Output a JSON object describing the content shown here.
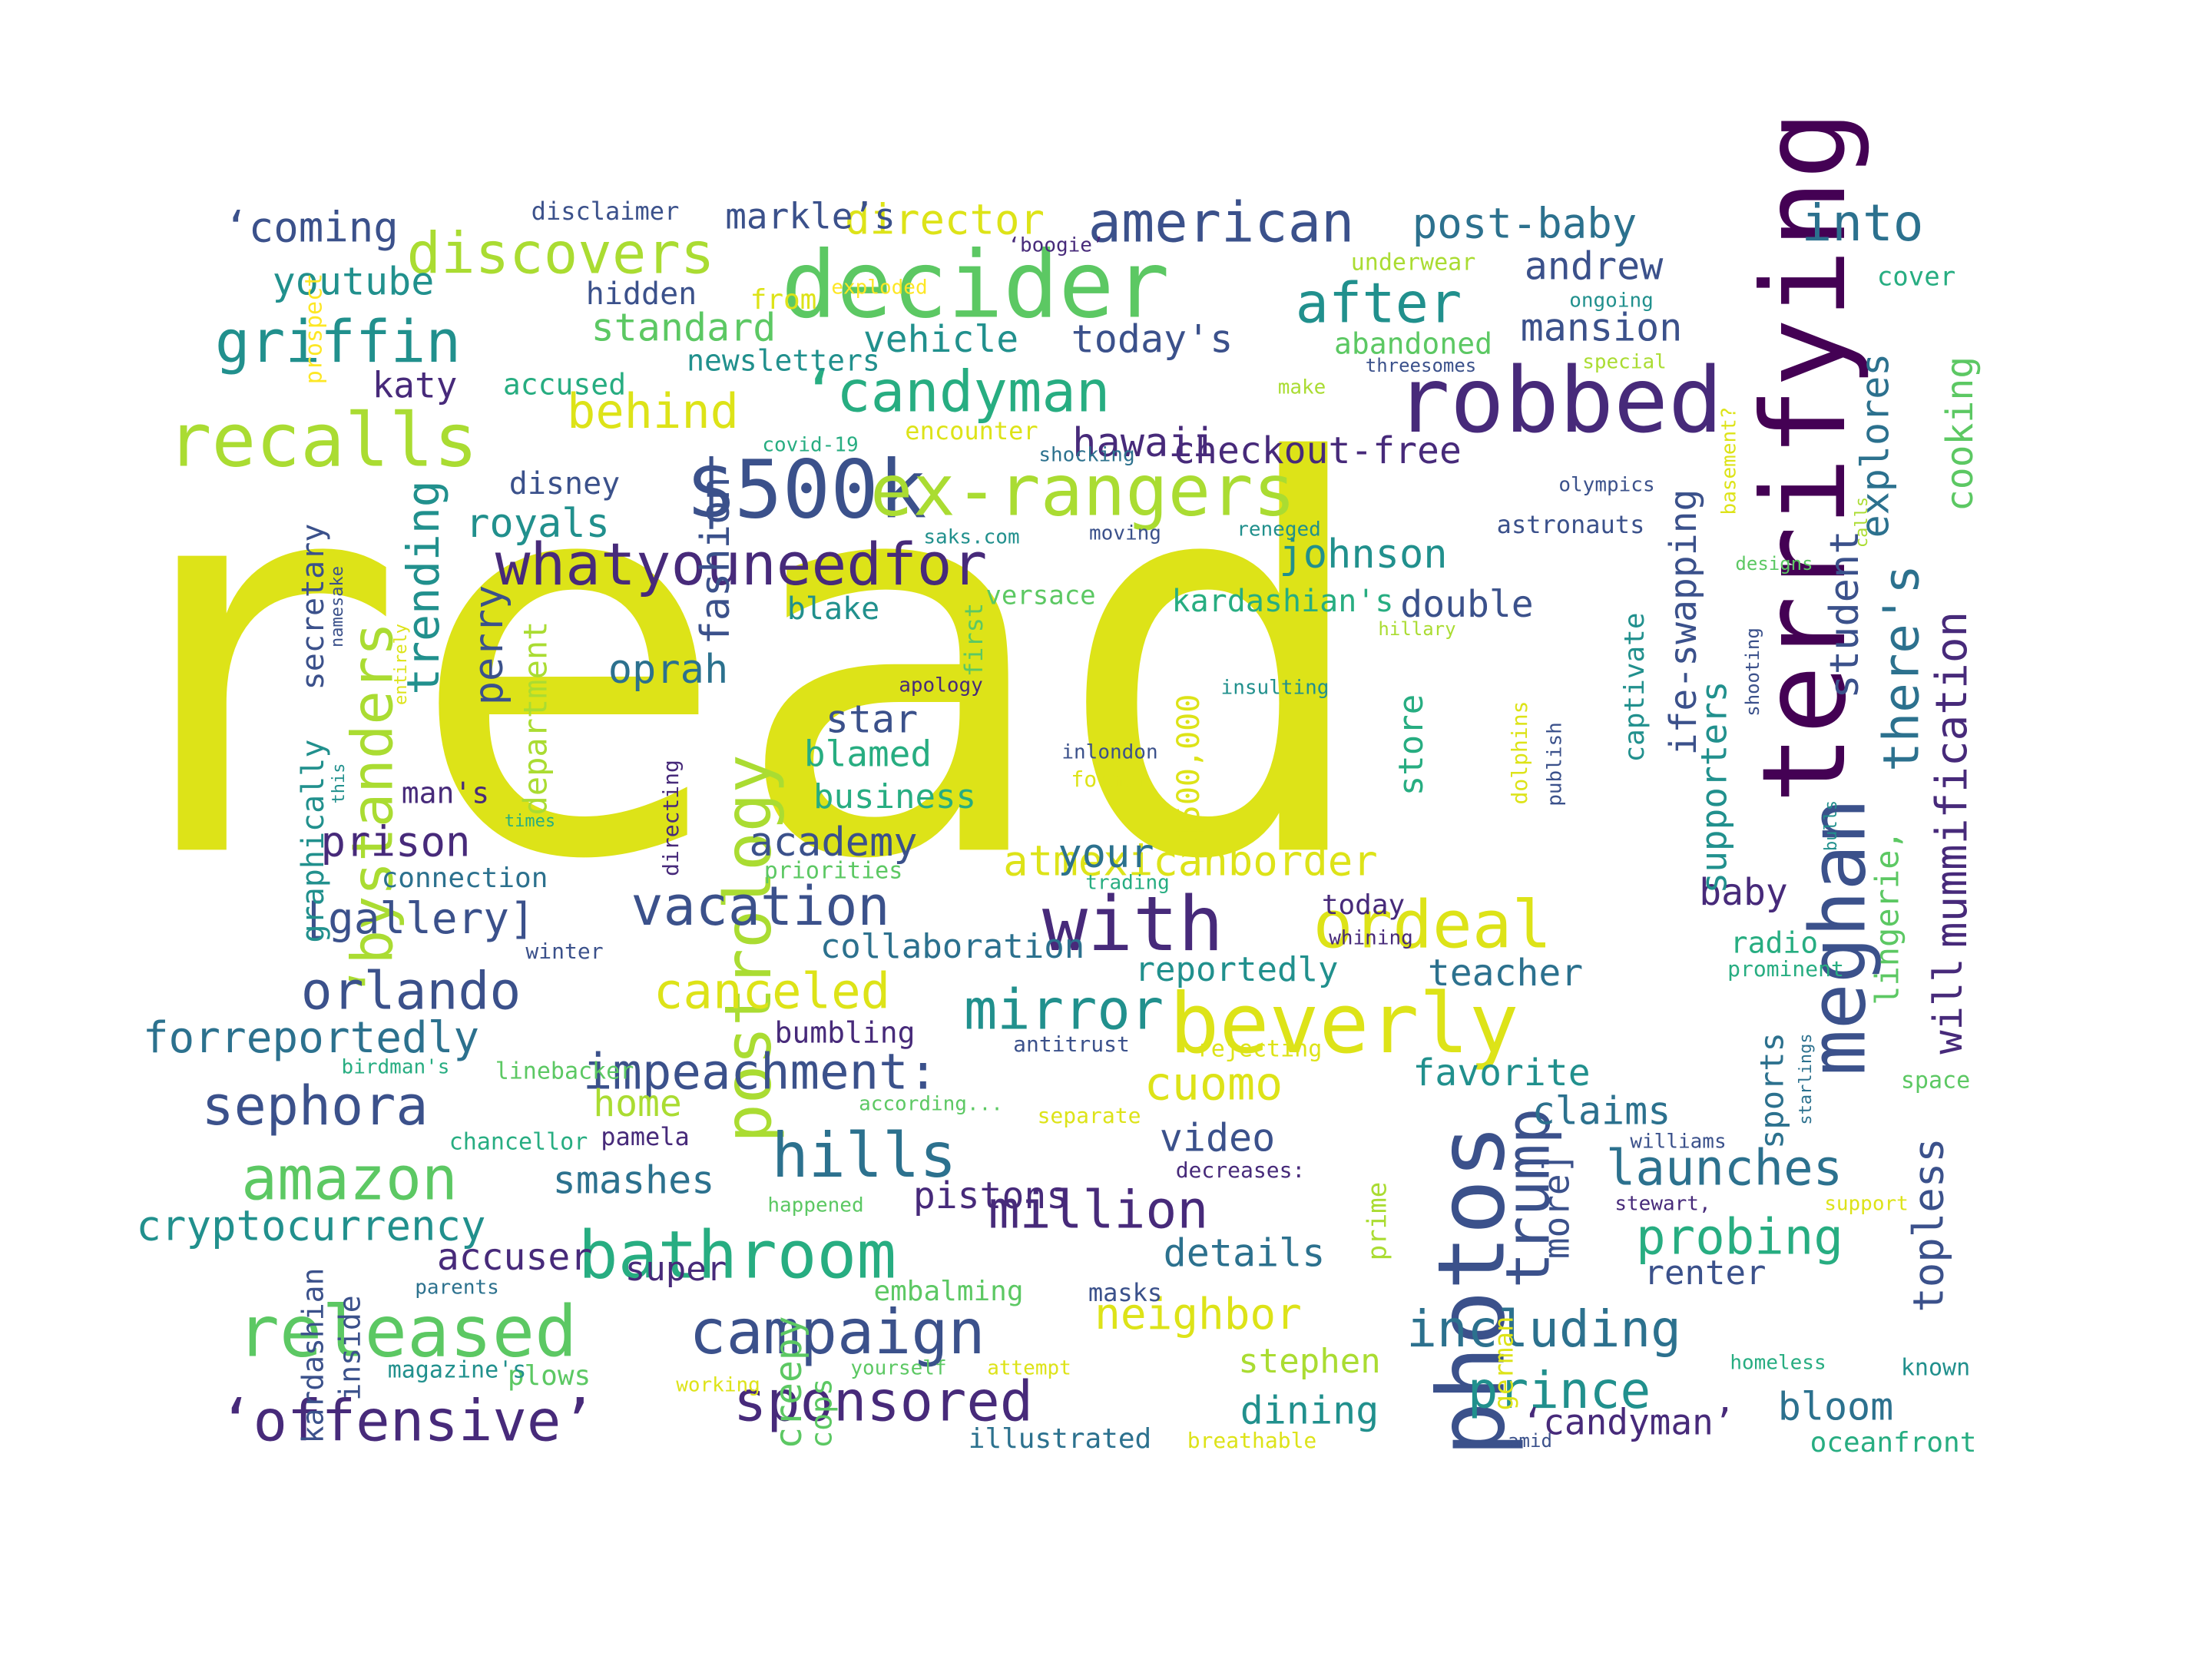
{
  "palette": {
    "p0": "#440154",
    "p1": "#472a7a",
    "p2": "#3b518b",
    "p3": "#2c718e",
    "p4": "#21908d",
    "p5": "#27ad81",
    "p6": "#5cc863",
    "p7": "#aadc32",
    "p8": "#dde318",
    "p9": "#fde725"
  },
  "words": [
    {
      "text": "(read",
      "color": "p8"
    },
    {
      "text": "terrifying",
      "color": "p0"
    },
    {
      "text": "robbed",
      "color": "p1"
    },
    {
      "text": "decider",
      "color": "p6"
    },
    {
      "text": "photos",
      "color": "p2"
    },
    {
      "text": "beverly",
      "color": "p8"
    },
    {
      "text": "$500k",
      "color": "p2"
    },
    {
      "text": "ex-rangers",
      "color": "p7"
    },
    {
      "text": "with",
      "color": "p1"
    },
    {
      "text": "ordeal",
      "color": "p8"
    },
    {
      "text": "recalls",
      "color": "p7"
    },
    {
      "text": "meghan",
      "color": "p2"
    },
    {
      "text": "released",
      "color": "p6"
    },
    {
      "text": "‘candyman",
      "color": "p5"
    },
    {
      "text": "postrology",
      "color": "p7"
    },
    {
      "text": "‘offensive’",
      "color": "p1"
    },
    {
      "text": "whatyouneedfor",
      "color": "p1"
    },
    {
      "text": "campaign",
      "color": "p2"
    },
    {
      "text": "bathroom",
      "color": "p5"
    },
    {
      "text": "griffin",
      "color": "p4"
    },
    {
      "text": "american",
      "color": "p2"
    },
    {
      "text": "discovers",
      "color": "p7"
    },
    {
      "text": "hills",
      "color": "p3"
    },
    {
      "text": "‘bystanders",
      "color": "p7"
    },
    {
      "text": "trump",
      "color": "p2"
    },
    {
      "text": "amazon",
      "color": "p6"
    },
    {
      "text": "sponsored",
      "color": "p1"
    },
    {
      "text": "after",
      "color": "p4"
    },
    {
      "text": "mirror",
      "color": "p4"
    },
    {
      "text": "vacation",
      "color": "p2"
    },
    {
      "text": "sephora",
      "color": "p2"
    },
    {
      "text": "orlando",
      "color": "p2"
    },
    {
      "text": "impeachment:",
      "color": "p2"
    },
    {
      "text": "million",
      "color": "p1"
    },
    {
      "text": "into",
      "color": "p3"
    },
    {
      "text": "canceled",
      "color": "p8"
    },
    {
      "text": "including",
      "color": "p3"
    },
    {
      "text": "cryptocurrency",
      "color": "p4"
    },
    {
      "text": "behind",
      "color": "p8"
    },
    {
      "text": "there's",
      "color": "p3"
    },
    {
      "text": "prince",
      "color": "p4"
    },
    {
      "text": "probing",
      "color": "p5"
    },
    {
      "text": "forreportedly",
      "color": "p3"
    },
    {
      "text": "launches",
      "color": "p3"
    },
    {
      "text": "mummification",
      "color": "p1"
    },
    {
      "text": "trending",
      "color": "p4"
    },
    {
      "text": "cuomo",
      "color": "p8"
    },
    {
      "text": "neighbor",
      "color": "p8"
    },
    {
      "text": "atmexicanborder",
      "color": "p8"
    },
    {
      "text": "‘coming",
      "color": "p2"
    },
    {
      "text": "post-baby",
      "color": "p3"
    },
    {
      "text": "checkout-free",
      "color": "p1"
    },
    {
      "text": "director",
      "color": "p8"
    },
    {
      "text": "topless",
      "color": "p2"
    },
    {
      "text": "smashes",
      "color": "p3"
    },
    {
      "text": "hawaii",
      "color": "p1"
    },
    {
      "text": "today's",
      "color": "p2"
    },
    {
      "text": "vehicle",
      "color": "p4"
    },
    {
      "text": "standard",
      "color": "p6"
    },
    {
      "text": "johnson",
      "color": "p4"
    },
    {
      "text": "fashion",
      "color": "p2"
    },
    {
      "text": "academy",
      "color": "p2"
    },
    {
      "text": "[gallery]",
      "color": "p2"
    },
    {
      "text": "prison",
      "color": "p1"
    },
    {
      "text": "perry",
      "color": "p2"
    },
    {
      "text": "royals",
      "color": "p4"
    },
    {
      "text": "oprah",
      "color": "p3"
    },
    {
      "text": "andrew",
      "color": "p2"
    },
    {
      "text": "mansion",
      "color": "p2"
    },
    {
      "text": "youtube",
      "color": "p4"
    },
    {
      "text": "explores",
      "color": "p3"
    },
    {
      "text": "cooking",
      "color": "p6"
    },
    {
      "text": "student",
      "color": "p2"
    },
    {
      "text": "markle’s",
      "color": "p2"
    },
    {
      "text": "ife-swapping",
      "color": "p2"
    },
    {
      "text": "video",
      "color": "p2"
    },
    {
      "text": "details",
      "color": "p3"
    },
    {
      "text": "pistons",
      "color": "p1"
    },
    {
      "text": "dining",
      "color": "p4"
    },
    {
      "text": "bloom",
      "color": "p3"
    },
    {
      "text": "claims",
      "color": "p3"
    },
    {
      "text": "accuser",
      "color": "p1"
    },
    {
      "text": "favorite",
      "color": "p4"
    },
    {
      "text": "teacher",
      "color": "p3"
    },
    {
      "text": "baby",
      "color": "p1"
    },
    {
      "text": "star",
      "color": "p2"
    },
    {
      "text": "your",
      "color": "p3"
    },
    {
      "text": "will",
      "color": "p1"
    },
    {
      "text": "double",
      "color": "p2"
    },
    {
      "text": "collaboration",
      "color": "p3"
    },
    {
      "text": "reportedly",
      "color": "p4"
    },
    {
      "text": "blamed",
      "color": "p5"
    },
    {
      "text": "katy",
      "color": "p1"
    },
    {
      "text": "home",
      "color": "p7"
    },
    {
      "text": "more]",
      "color": "p2"
    },
    {
      "text": "renter",
      "color": "p2"
    },
    {
      "text": "creepy",
      "color": "p6"
    },
    {
      "text": "business",
      "color": "p5"
    },
    {
      "text": "supporters",
      "color": "p4"
    },
    {
      "text": "store",
      "color": "p5"
    },
    {
      "text": "department",
      "color": "p7"
    },
    {
      "text": "kardashian's",
      "color": "p5"
    },
    {
      "text": "lingerie,",
      "color": "p6"
    },
    {
      "text": "sports",
      "color": "p3"
    },
    {
      "text": "stephen",
      "color": "p7"
    },
    {
      "text": "‘candyman’",
      "color": "p1"
    },
    {
      "text": "super",
      "color": "p1"
    },
    {
      "text": "man's",
      "color": "p1"
    },
    {
      "text": "blake",
      "color": "p4"
    },
    {
      "text": "hidden",
      "color": "p2"
    },
    {
      "text": "newsletters",
      "color": "p4"
    },
    {
      "text": "disney",
      "color": "p2"
    },
    {
      "text": "accused",
      "color": "p5"
    },
    {
      "text": "secretary",
      "color": "p2"
    },
    {
      "text": "graphically",
      "color": "p4"
    },
    {
      "text": "kardashian",
      "color": "p2"
    },
    {
      "text": "inside",
      "color": "p2"
    },
    {
      "text": "cops",
      "color": "p6"
    },
    {
      "text": "$500,000",
      "color": "p8"
    },
    {
      "text": "abandoned",
      "color": "p6"
    },
    {
      "text": "captivate",
      "color": "p4"
    },
    {
      "text": "connection",
      "color": "p3"
    },
    {
      "text": "bumbling",
      "color": "p1"
    },
    {
      "text": "plows",
      "color": "p6"
    },
    {
      "text": "embalming",
      "color": "p6"
    },
    {
      "text": "illustrated",
      "color": "p3"
    },
    {
      "text": "oceanfront",
      "color": "p5"
    },
    {
      "text": "radio",
      "color": "p5"
    },
    {
      "text": "masks",
      "color": "p2"
    },
    {
      "text": "pamela",
      "color": "p1"
    },
    {
      "text": "german",
      "color": "p8"
    },
    {
      "text": "prime",
      "color": "p7"
    },
    {
      "text": "today",
      "color": "p1"
    },
    {
      "text": "astronauts",
      "color": "p2"
    },
    {
      "text": "from",
      "color": "p8"
    },
    {
      "text": "encounter",
      "color": "p8"
    },
    {
      "text": "underwear",
      "color": "p7"
    },
    {
      "text": "versace",
      "color": "p6"
    },
    {
      "text": "first",
      "color": "p6"
    },
    {
      "text": "prospect",
      "color": "p9"
    },
    {
      "text": "covid-19",
      "color": "p5"
    },
    {
      "text": "saks.com",
      "color": "p4"
    },
    {
      "text": "olympics",
      "color": "p2"
    },
    {
      "text": "cover",
      "color": "p5"
    },
    {
      "text": "directing",
      "color": "p1"
    },
    {
      "text": "disclaimer",
      "color": "p2"
    },
    {
      "text": "apology",
      "color": "p1"
    },
    {
      "text": "former",
      "color": "p8"
    },
    {
      "text": "priorities",
      "color": "p6"
    },
    {
      "text": "trading",
      "color": "p5"
    },
    {
      "text": "whining",
      "color": "p1"
    },
    {
      "text": "rejecting",
      "color": "p8"
    },
    {
      "text": "linebacker",
      "color": "p6"
    },
    {
      "text": "winter",
      "color": "p2"
    },
    {
      "text": "chancellor",
      "color": "p5"
    },
    {
      "text": "separate",
      "color": "p8"
    },
    {
      "text": "decreases:",
      "color": "p1"
    },
    {
      "text": "antitrust",
      "color": "p2"
    },
    {
      "text": "homeless",
      "color": "p5"
    },
    {
      "text": "known",
      "color": "p4"
    },
    {
      "text": "space",
      "color": "p6"
    },
    {
      "text": "inlondon",
      "color": "p2"
    },
    {
      "text": "insulting",
      "color": "p4"
    },
    {
      "text": "publish",
      "color": "p2"
    },
    {
      "text": "dolphins",
      "color": "p8"
    },
    {
      "text": "birdman's",
      "color": "p5"
    },
    {
      "text": "prominent",
      "color": "p5"
    },
    {
      "text": "magazine's",
      "color": "p4"
    },
    {
      "text": "parents",
      "color": "p3"
    },
    {
      "text": "stewart,",
      "color": "p1"
    },
    {
      "text": "breathable",
      "color": "p8"
    },
    {
      "text": "support",
      "color": "p8"
    },
    {
      "text": "amid",
      "color": "p2"
    },
    {
      "text": "happened",
      "color": "p6"
    },
    {
      "text": "williams",
      "color": "p2"
    },
    {
      "text": "yourself",
      "color": "p6"
    },
    {
      "text": "attempt",
      "color": "p8"
    },
    {
      "text": "working",
      "color": "p8"
    },
    {
      "text": "according...",
      "color": "p6"
    },
    {
      "text": "shocking",
      "color": "p3"
    },
    {
      "text": "moving",
      "color": "p2"
    },
    {
      "text": "reneged",
      "color": "p4"
    },
    {
      "text": "make",
      "color": "p7"
    },
    {
      "text": "exploded",
      "color": "p9"
    },
    {
      "text": "‘boogie’",
      "color": "p1"
    },
    {
      "text": "ongoing",
      "color": "p4"
    },
    {
      "text": "threesomes",
      "color": "p2"
    },
    {
      "text": "special",
      "color": "p7"
    },
    {
      "text": "basement?",
      "color": "p8"
    },
    {
      "text": "designs",
      "color": "p6"
    },
    {
      "text": "hillary",
      "color": "p7"
    },
    {
      "text": "shooting",
      "color": "p2"
    },
    {
      "text": "calls",
      "color": "p7"
    },
    {
      "text": "bulls",
      "color": "p4"
    },
    {
      "text": "starlings",
      "color": "p3"
    },
    {
      "text": "times",
      "color": "p5"
    },
    {
      "text": "this",
      "color": "p4"
    },
    {
      "text": "entirely",
      "color": "p8"
    },
    {
      "text": "namesake",
      "color": "p2"
    }
  ]
}
